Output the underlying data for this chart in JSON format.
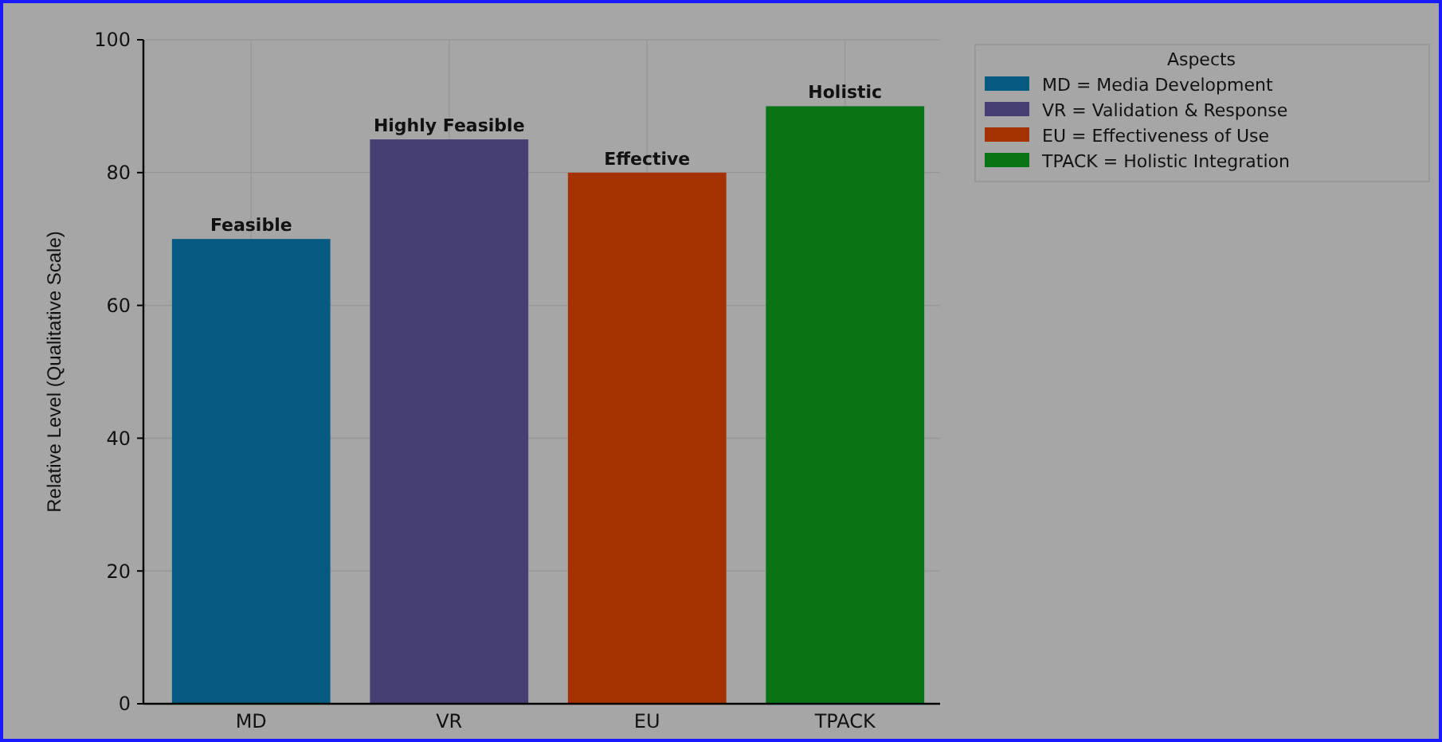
{
  "chart_data": {
    "type": "bar",
    "ylabel": "Relative Level (Qualitative Scale)",
    "legend_title": "Aspects",
    "categories": [
      "MD",
      "VR",
      "EU",
      "TPACK"
    ],
    "series": [
      {
        "name": "MD = Media Development",
        "color": "#045a80",
        "values": [
          70,
          null,
          null,
          null
        ],
        "value_labels": [
          "Feasible",
          null,
          null,
          null
        ]
      },
      {
        "name": "VR = Validation & Response",
        "color": "#463f73",
        "values": [
          null,
          85,
          null,
          null
        ],
        "value_labels": [
          null,
          "Highly Feasible",
          null,
          null
        ]
      },
      {
        "name": "EU = Effectiveness of Use",
        "color": "#a33200",
        "values": [
          null,
          null,
          80,
          null
        ],
        "value_labels": [
          null,
          null,
          "Effective",
          null
        ]
      },
      {
        "name": "TPACK = Holistic Integration",
        "color": "#087414",
        "values": [
          null,
          null,
          null,
          90
        ],
        "value_labels": [
          null,
          null,
          null,
          "Holistic"
        ]
      }
    ],
    "ylim": [
      0,
      100
    ],
    "yticks": [
      0,
      20,
      40,
      60,
      80,
      100
    ],
    "grid": true,
    "legend": "top right"
  }
}
